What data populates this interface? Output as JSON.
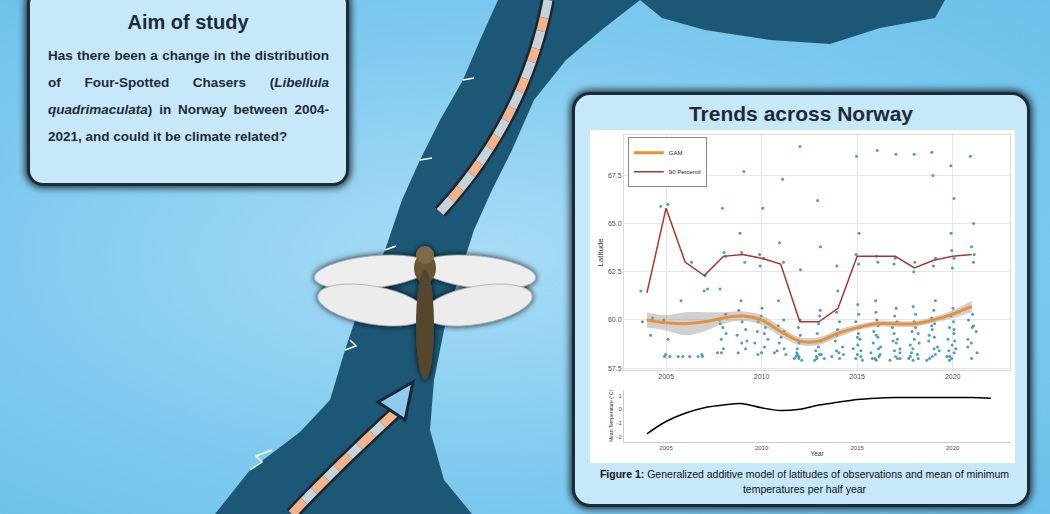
{
  "poster": {
    "aim": {
      "title": "Aim of study",
      "text_before": "Has there been a change in the distribution of Four-Spotted Chasers (",
      "species": "Libellula quadrimaculata",
      "text_after": ") in Norway between 2004-2021, and could it be climate related?"
    },
    "panel_title": "Trends across Norway",
    "caption": {
      "label": "Figure 1:",
      "text": "Generalized additive model of latitudes of observations and mean of minimum temperatures per half year"
    }
  },
  "chart_data": [
    {
      "type": "scatter",
      "ylabel": "Latitude",
      "x": [
        2004,
        2005,
        2006,
        2007,
        2008,
        2009,
        2010,
        2011,
        2012,
        2013,
        2014,
        2015,
        2016,
        2017,
        2018,
        2019,
        2020,
        2021
      ],
      "series": [
        {
          "name": "90 Percentil",
          "type": "line",
          "color": "#a8372c",
          "values": [
            61.4,
            65.8,
            63.0,
            62.3,
            63.3,
            63.4,
            63.2,
            62.9,
            59.9,
            59.9,
            60.6,
            63.3,
            63.3,
            63.3,
            62.7,
            63.1,
            63.3,
            63.4
          ]
        },
        {
          "name": "GAM",
          "type": "line",
          "color": "#e8913a",
          "values": [
            60.0,
            59.85,
            59.8,
            59.9,
            60.1,
            60.2,
            60.0,
            59.4,
            58.9,
            58.9,
            59.3,
            59.6,
            59.8,
            59.8,
            59.8,
            60.0,
            60.3,
            60.7
          ],
          "lower": [
            59.6,
            59.45,
            59.2,
            59.4,
            59.8,
            59.95,
            59.75,
            59.15,
            58.7,
            58.7,
            59.1,
            59.45,
            59.65,
            59.65,
            59.65,
            59.85,
            60.1,
            60.4
          ],
          "upper": [
            60.4,
            60.25,
            60.4,
            60.4,
            60.4,
            60.45,
            60.25,
            59.65,
            59.1,
            59.1,
            59.5,
            59.75,
            59.95,
            59.95,
            59.95,
            60.15,
            60.5,
            61.0
          ]
        }
      ],
      "points": {
        "color": "#2d8db0",
        "marker": "circle",
        "values": [
          [
            59.2,
            59.9,
            60.1,
            61.5
          ],
          [
            66.0,
            65.9,
            58.1,
            58.1,
            58.2,
            59.0,
            60.0
          ],
          [
            58.1,
            58.1,
            58.1,
            61.0,
            63.0
          ],
          [
            58.1,
            58.2,
            61.6,
            61.5,
            62.3,
            58.1
          ],
          [
            58.3,
            58.5,
            59.0,
            59.3,
            59.6,
            60.0,
            60.3,
            61.6,
            63.3,
            63.5,
            65.8,
            58.3,
            59.8
          ],
          [
            58.3,
            58.5,
            58.8,
            59.2,
            59.5,
            59.9,
            60.2,
            60.5,
            61.0,
            63.0,
            63.5,
            67.7,
            64.5,
            58.9
          ],
          [
            58.2,
            58.3,
            58.6,
            59.0,
            59.3,
            59.6,
            59.9,
            60.2,
            60.6,
            62.8,
            63.2,
            63.4,
            65.8,
            59.4,
            58.8
          ],
          [
            58.2,
            58.3,
            58.5,
            58.8,
            59.1,
            59.4,
            59.7,
            60.0,
            63.0,
            67.3,
            64.0,
            61.0,
            58.4
          ],
          [
            57.9,
            58.0,
            58.1,
            58.2,
            58.3,
            58.5,
            58.8,
            59.2,
            59.6,
            60.0,
            62.6,
            69.0,
            58.1,
            58.0
          ],
          [
            57.9,
            58.0,
            58.1,
            58.2,
            58.4,
            58.6,
            58.9,
            59.3,
            59.8,
            60.2,
            60.5,
            63.8,
            66.2,
            58.0,
            58.2
          ],
          [
            58.0,
            58.2,
            58.4,
            58.6,
            58.9,
            59.2,
            59.5,
            59.9,
            60.4,
            61.5,
            62.8,
            58.1,
            58.3
          ],
          [
            57.9,
            58.0,
            58.2,
            58.4,
            58.7,
            59.0,
            59.3,
            59.6,
            59.9,
            60.3,
            60.8,
            62.9,
            63.4,
            68.5,
            64.5,
            58.1,
            58.5,
            59.1
          ],
          [
            57.9,
            58.0,
            58.1,
            58.3,
            58.5,
            58.8,
            59.1,
            59.4,
            59.7,
            60.0,
            60.4,
            61.0,
            63.0,
            63.3,
            68.8,
            58.0,
            58.2,
            58.6,
            59.2
          ],
          [
            57.9,
            58.0,
            58.1,
            58.3,
            58.5,
            58.8,
            59.0,
            59.3,
            59.6,
            59.9,
            60.2,
            60.6,
            62.9,
            63.2,
            68.6,
            58.0,
            58.4,
            58.9
          ],
          [
            57.9,
            58.0,
            58.1,
            58.3,
            58.5,
            58.7,
            59.0,
            59.3,
            59.6,
            59.9,
            60.3,
            60.7,
            62.5,
            63.0,
            68.6,
            58.0,
            58.2,
            58.8,
            59.4
          ],
          [
            57.9,
            58.0,
            58.2,
            58.4,
            58.6,
            58.9,
            59.2,
            59.5,
            59.8,
            60.1,
            60.5,
            61.0,
            62.8,
            63.2,
            68.7,
            67.5,
            58.1,
            58.5,
            59.1,
            59.7
          ],
          [
            57.9,
            58.0,
            58.1,
            58.3,
            58.5,
            58.7,
            59.0,
            59.3,
            59.6,
            59.9,
            60.2,
            60.6,
            62.7,
            63.2,
            63.6,
            64.5,
            66.3,
            68.0,
            58.1,
            58.4,
            58.9,
            59.5
          ],
          [
            58.0,
            58.3,
            58.6,
            59.0,
            59.4,
            59.7,
            60.0,
            60.3,
            63.0,
            63.4,
            63.8,
            65.0,
            68.5,
            58.8,
            59.6
          ]
        ]
      },
      "xlim": [
        2002.8,
        2023.0
      ],
      "xticks": [
        2005,
        2010,
        2015,
        2020
      ],
      "ylim": [
        57.4,
        69.6
      ],
      "yticks": [
        57.5,
        {
          "value": 60,
          "label": "60.0"
        },
        62.5,
        {
          "value": 65,
          "label": "65.0"
        },
        67.5
      ],
      "grid": true,
      "legend": "top left"
    },
    {
      "type": "line",
      "xlabel": "Year",
      "ylabel": "Mean Temperature (°C)",
      "x": [
        2004,
        2005,
        2006,
        2007,
        2008,
        2009,
        2010,
        2011,
        2012,
        2013,
        2014,
        2015,
        2016,
        2017,
        2018,
        2019,
        2020,
        2021,
        2022
      ],
      "series": [
        {
          "type": "line",
          "color": "#000000",
          "values": [
            -1.8,
            -0.9,
            -0.3,
            0.1,
            0.3,
            0.4,
            0.1,
            -0.1,
            0.0,
            0.3,
            0.5,
            0.7,
            0.8,
            0.85,
            0.85,
            0.85,
            0.85,
            0.85,
            0.8
          ]
        }
      ],
      "xlim": [
        2002.8,
        2023.0
      ],
      "xticks": [
        2005,
        2010,
        2015,
        2020
      ],
      "ylim": [
        -2.4,
        1.4
      ],
      "yticks": [
        -2,
        -1,
        0,
        1
      ],
      "grid": false
    }
  ]
}
